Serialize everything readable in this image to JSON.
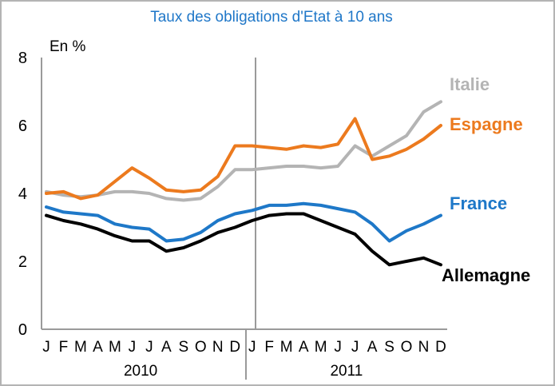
{
  "chart_data": {
    "type": "line",
    "title": "Taux des obligations d'Etat à 10 ans",
    "ylabel": "En  %",
    "ylim": [
      0,
      8
    ],
    "yticks": [
      "0",
      "2",
      "4",
      "6",
      "8"
    ],
    "grid": false,
    "months": [
      "J",
      "F",
      "M",
      "A",
      "M",
      "J",
      "J",
      "A",
      "S",
      "O",
      "N",
      "D",
      "J",
      "F",
      "M",
      "A",
      "M",
      "J",
      "J",
      "A",
      "S",
      "O",
      "N",
      "D"
    ],
    "years": [
      "2010",
      "2011"
    ],
    "x": [
      "2010-01",
      "2010-02",
      "2010-03",
      "2010-04",
      "2010-05",
      "2010-06",
      "2010-07",
      "2010-08",
      "2010-09",
      "2010-10",
      "2010-11",
      "2010-12",
      "2011-01",
      "2011-02",
      "2011-03",
      "2011-04",
      "2011-05",
      "2011-06",
      "2011-07",
      "2011-08",
      "2011-09",
      "2011-10",
      "2011-11",
      "2011-12"
    ],
    "series": [
      {
        "name": "Italie",
        "color": "#b4b4b4",
        "values": [
          4.05,
          3.95,
          3.9,
          3.95,
          4.05,
          4.05,
          4.0,
          3.85,
          3.8,
          3.85,
          4.2,
          4.7,
          4.7,
          4.75,
          4.8,
          4.8,
          4.75,
          4.8,
          5.4,
          5.1,
          5.4,
          5.7,
          6.4,
          6.7
        ]
      },
      {
        "name": "Espagne",
        "color": "#ec7a1e",
        "values": [
          4.0,
          4.05,
          3.85,
          3.95,
          4.35,
          4.75,
          4.45,
          4.1,
          4.05,
          4.1,
          4.5,
          5.4,
          5.4,
          5.35,
          5.3,
          5.4,
          5.35,
          5.45,
          6.2,
          5.0,
          5.1,
          5.3,
          5.6,
          6.0
        ]
      },
      {
        "name": "France",
        "color": "#1e78c8",
        "values": [
          3.6,
          3.45,
          3.4,
          3.35,
          3.1,
          3.0,
          2.95,
          2.6,
          2.65,
          2.85,
          3.2,
          3.4,
          3.5,
          3.65,
          3.65,
          3.7,
          3.65,
          3.55,
          3.45,
          3.1,
          2.6,
          2.9,
          3.1,
          3.35
        ]
      },
      {
        "name": "Allemagne",
        "color": "#000000",
        "values": [
          3.35,
          3.2,
          3.1,
          2.95,
          2.75,
          2.6,
          2.6,
          2.3,
          2.4,
          2.6,
          2.85,
          3.0,
          3.2,
          3.35,
          3.4,
          3.4,
          3.2,
          3.0,
          2.8,
          2.3,
          1.9,
          2.0,
          2.1,
          1.9
        ]
      }
    ]
  }
}
